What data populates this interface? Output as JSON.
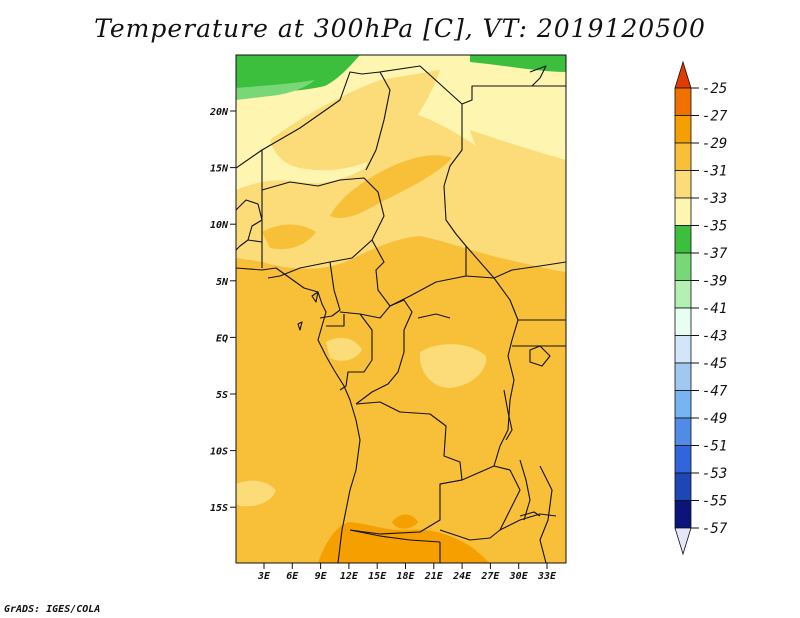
{
  "title": "Temperature at 300hPa [C], VT: 2019120500",
  "footer": "GrADS: IGES/COLA",
  "map": {
    "lat_labels": [
      "20N",
      "15N",
      "10N",
      "5N",
      "EQ",
      "5S",
      "10S",
      "15S"
    ],
    "lon_labels": [
      "3E",
      "6E",
      "9E",
      "12E",
      "15E",
      "18E",
      "21E",
      "24E",
      "27E",
      "30E",
      "33E"
    ]
  },
  "colorbar": {
    "labels": [
      "-25",
      "-27",
      "-29",
      "-31",
      "-33",
      "-35",
      "-37",
      "-39",
      "-41",
      "-43",
      "-45",
      "-47",
      "-49",
      "-51",
      "-53",
      "-55",
      "-57"
    ],
    "colors": [
      "#e03c00",
      "#f07000",
      "#f5a000",
      "#f8bf38",
      "#fbdc78",
      "#fdf5b0",
      "#3cbf3c",
      "#78d878",
      "#b4f0b4",
      "#e6fff0",
      "#d2e6fa",
      "#a0c8f0",
      "#78b4f0",
      "#508ce6",
      "#3264dc",
      "#1e46b4",
      "#0a147a",
      "#000064",
      "#e6e6fa"
    ],
    "top_arrow_color": "#e03c00",
    "bottom_arrow_color": "#e6e6fa"
  }
}
